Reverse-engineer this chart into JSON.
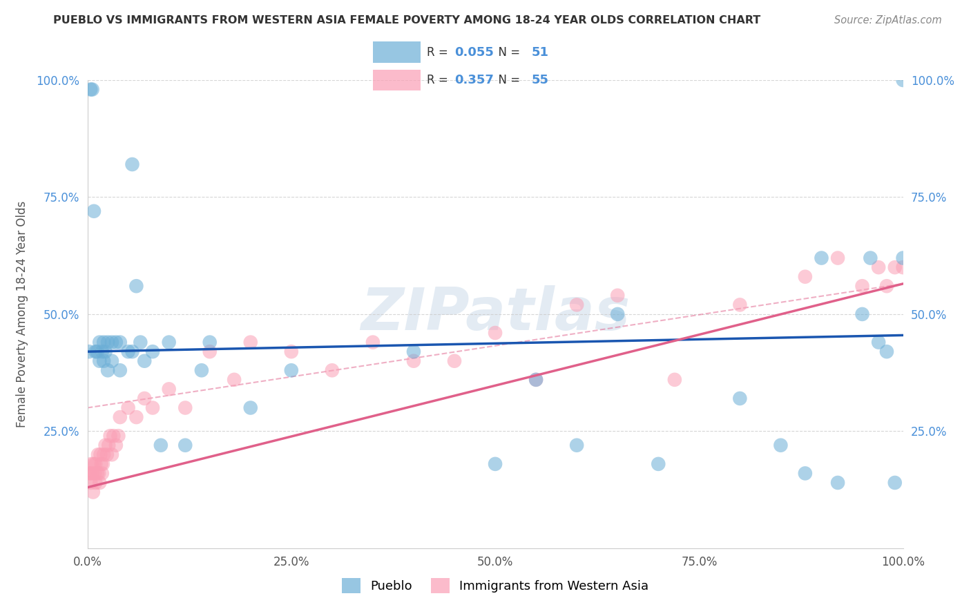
{
  "title": "PUEBLO VS IMMIGRANTS FROM WESTERN ASIA FEMALE POVERTY AMONG 18-24 YEAR OLDS CORRELATION CHART",
  "source": "Source: ZipAtlas.com",
  "ylabel": "Female Poverty Among 18-24 Year Olds",
  "xlim": [
    0,
    1.0
  ],
  "ylim": [
    0,
    1.0
  ],
  "xticks": [
    0.0,
    0.25,
    0.5,
    0.75,
    1.0
  ],
  "yticks": [
    0.0,
    0.25,
    0.5,
    0.75,
    1.0
  ],
  "xticklabels": [
    "0.0%",
    "25.0%",
    "50.0%",
    "75.0%",
    "100.0%"
  ],
  "yticklabels": [
    "",
    "25.0%",
    "50.0%",
    "75.0%",
    "100.0%"
  ],
  "legend_label1": "Pueblo",
  "legend_label2": "Immigrants from Western Asia",
  "R1": "0.055",
  "N1": "51",
  "R2": "0.357",
  "N2": "55",
  "blue_color": "#6baed6",
  "pink_color": "#fa9fb5",
  "line1_color": "#1a56b0",
  "line2_color": "#e0608a",
  "dashed_color": "#e0608a",
  "bg_color": "#ffffff",
  "grid_color": "#cccccc",
  "title_color": "#333333",
  "label_color": "#555555",
  "tick_color": "#4a90d9",
  "watermark_text": "ZIPatlas",
  "blue_line_y0": 0.42,
  "blue_line_y1": 0.455,
  "pink_line_y0": 0.13,
  "pink_line_y1": 0.565,
  "dashed_line_y0": 0.3,
  "dashed_line_y1": 0.565,
  "pueblo_x": [
    0.002,
    0.004,
    0.006,
    0.008,
    0.01,
    0.012,
    0.015,
    0.015,
    0.018,
    0.02,
    0.02,
    0.022,
    0.025,
    0.025,
    0.03,
    0.03,
    0.035,
    0.04,
    0.04,
    0.05,
    0.055,
    0.06,
    0.065,
    0.07,
    0.08,
    0.09,
    0.1,
    0.12,
    0.14,
    0.15,
    0.2,
    0.25,
    0.4,
    0.5,
    0.55,
    0.6,
    0.65,
    0.7,
    0.8,
    0.85,
    0.88,
    0.9,
    0.92,
    0.95,
    0.96,
    0.97,
    0.98,
    0.99,
    1.0,
    1.0,
    0.055
  ],
  "pueblo_y": [
    0.42,
    0.98,
    0.98,
    0.72,
    0.42,
    0.42,
    0.44,
    0.4,
    0.42,
    0.44,
    0.4,
    0.42,
    0.44,
    0.38,
    0.44,
    0.4,
    0.44,
    0.44,
    0.38,
    0.42,
    0.42,
    0.56,
    0.44,
    0.4,
    0.42,
    0.22,
    0.44,
    0.22,
    0.38,
    0.44,
    0.3,
    0.38,
    0.42,
    0.18,
    0.36,
    0.22,
    0.5,
    0.18,
    0.32,
    0.22,
    0.16,
    0.62,
    0.14,
    0.5,
    0.62,
    0.44,
    0.42,
    0.14,
    0.62,
    1.0,
    0.82
  ],
  "immigrant_x": [
    0.002,
    0.003,
    0.004,
    0.005,
    0.006,
    0.007,
    0.008,
    0.009,
    0.01,
    0.01,
    0.012,
    0.013,
    0.014,
    0.015,
    0.016,
    0.017,
    0.018,
    0.019,
    0.02,
    0.022,
    0.024,
    0.026,
    0.028,
    0.03,
    0.032,
    0.035,
    0.038,
    0.04,
    0.05,
    0.06,
    0.07,
    0.08,
    0.1,
    0.12,
    0.15,
    0.18,
    0.2,
    0.25,
    0.3,
    0.35,
    0.4,
    0.5,
    0.55,
    0.65,
    0.72,
    0.8,
    0.88,
    0.92,
    0.95,
    0.97,
    0.98,
    0.99,
    1.0,
    0.45,
    0.6
  ],
  "immigrant_y": [
    0.16,
    0.16,
    0.14,
    0.18,
    0.16,
    0.12,
    0.18,
    0.16,
    0.18,
    0.14,
    0.16,
    0.2,
    0.16,
    0.14,
    0.2,
    0.18,
    0.16,
    0.18,
    0.2,
    0.22,
    0.2,
    0.22,
    0.24,
    0.2,
    0.24,
    0.22,
    0.24,
    0.28,
    0.3,
    0.28,
    0.32,
    0.3,
    0.34,
    0.3,
    0.42,
    0.36,
    0.44,
    0.42,
    0.38,
    0.44,
    0.4,
    0.46,
    0.36,
    0.54,
    0.36,
    0.52,
    0.58,
    0.62,
    0.56,
    0.6,
    0.56,
    0.6,
    0.6,
    0.4,
    0.52
  ]
}
